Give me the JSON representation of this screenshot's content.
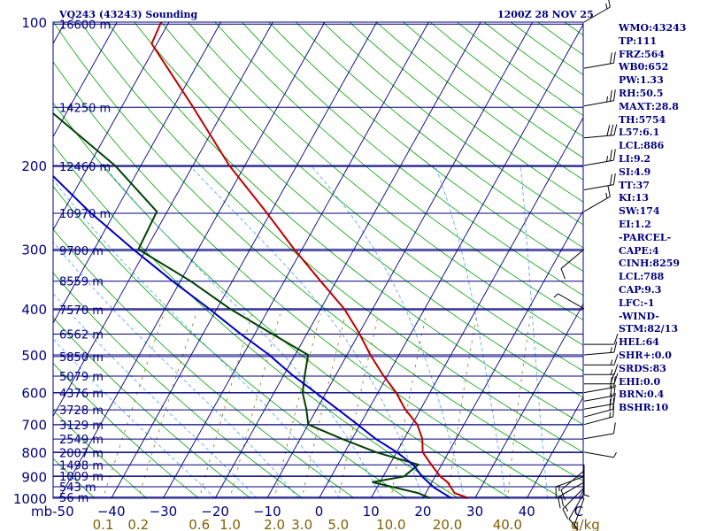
{
  "header": {
    "station": "VQ243 (43243) Sounding",
    "time": "1200Z 28 NOV 25"
  },
  "indices": [
    "WMO:43243",
    "TP:111",
    "FRZ:564",
    "WB0:652",
    "PW:1.33",
    "RH:50.5",
    "MAXT:28.8",
    "TH:5754",
    "L57:6.1",
    "LCL:886",
    "LI:9.2",
    "SI:4.9",
    "TT:37",
    "KI:13",
    "SW:174",
    "EI:1.2",
    "-PARCEL-",
    "CAPE:4",
    "CINH:8259",
    "LCL:788",
    "CAP:9.3",
    "LFC:-1",
    "-WIND-",
    "STM:82/13",
    "HEL:64",
    "SHR+:0.0",
    "SRDS:83",
    "EHI:0.0",
    "BRN:0.4",
    "BSHR:10"
  ],
  "colors": {
    "frame": "#00007f",
    "isotherm": "#00007f",
    "dry_adiabat": "#00a000",
    "moist_adiabat": "#5aaaff",
    "mixing_ratio": "#a08020",
    "temperature": "#c00000",
    "dewpoint": "#004000",
    "parcel": "#0000c0",
    "wind_barb": "#000000"
  },
  "chart_data": {
    "type": "line",
    "diagram": "skew-t log-p",
    "y_scale": "log",
    "ylim": [
      1000,
      100
    ],
    "xlim": [
      -50,
      50
    ],
    "isobars": [
      1000,
      900,
      800,
      700,
      600,
      500,
      400,
      300,
      200,
      100
    ],
    "pressure_tick_labels": [
      "1000",
      "900",
      "800",
      "700",
      "600",
      "500",
      "400",
      "300",
      "200",
      "100"
    ],
    "height_labels": [
      {
        "p": 995,
        "label": "56 m"
      },
      {
        "p": 946,
        "label": "543 m"
      },
      {
        "p": 898,
        "label": "1009 m"
      },
      {
        "p": 851,
        "label": "1498 m"
      },
      {
        "p": 802,
        "label": "2007 m"
      },
      {
        "p": 751,
        "label": "2549 m"
      },
      {
        "p": 701,
        "label": "3129 m"
      },
      {
        "p": 652,
        "label": "3728 m"
      },
      {
        "p": 601,
        "label": "4376 m"
      },
      {
        "p": 554,
        "label": "5079 m"
      },
      {
        "p": 504,
        "label": "5850 m"
      },
      {
        "p": 452,
        "label": "6562 m"
      },
      {
        "p": 402,
        "label": "7570 m"
      },
      {
        "p": 350,
        "label": "8559 m"
      },
      {
        "p": 302,
        "label": "9700 m"
      },
      {
        "p": 252,
        "label": "10970 m"
      },
      {
        "p": 201,
        "label": "12460 m"
      },
      {
        "p": 151,
        "label": "14250 m"
      },
      {
        "p": 101,
        "label": "16600 m"
      }
    ],
    "temperature_ticks": [
      -50,
      -40,
      -30,
      -20,
      -10,
      0,
      10,
      20,
      30,
      40,
      50
    ],
    "temperature_tick_labels": [
      "mb-50",
      "−40",
      "−30",
      "−20",
      "−10",
      "0",
      "10",
      "20",
      "30",
      "40",
      "C"
    ],
    "mixing_ratio_ticks": [
      0.1,
      0.2,
      0.6,
      1.0,
      2.0,
      3.0,
      5.0,
      10.0,
      20.0,
      40.0
    ],
    "mixing_ratio_tick_labels": [
      "0.1",
      "0.2",
      "0.6",
      "1.0",
      "2.0",
      "3.0",
      "5.0",
      "10.0",
      "20.0",
      "40.0",
      "g/kg"
    ],
    "series": [
      {
        "key": "temperature",
        "points": [
          {
            "p": 1000,
            "t": 28.8
          },
          {
            "p": 975,
            "t": 25.5
          },
          {
            "p": 925,
            "t": 23.0
          },
          {
            "p": 900,
            "t": 21.0
          },
          {
            "p": 850,
            "t": 18.0
          },
          {
            "p": 800,
            "t": 15.0
          },
          {
            "p": 750,
            "t": 13.5
          },
          {
            "p": 700,
            "t": 11.0
          },
          {
            "p": 650,
            "t": 7.0
          },
          {
            "p": 600,
            "t": 3.5
          },
          {
            "p": 550,
            "t": -1.0
          },
          {
            "p": 500,
            "t": -5.5
          },
          {
            "p": 450,
            "t": -10.0
          },
          {
            "p": 400,
            "t": -15.5
          },
          {
            "p": 350,
            "t": -23.0
          },
          {
            "p": 300,
            "t": -31.5
          },
          {
            "p": 250,
            "t": -41.0
          },
          {
            "p": 200,
            "t": -53.0
          },
          {
            "p": 150,
            "t": -66.5
          },
          {
            "p": 111,
            "t": -81.0
          },
          {
            "p": 100,
            "t": -81.5
          }
        ]
      },
      {
        "key": "dewpoint",
        "points": [
          {
            "p": 1000,
            "t": 21.5
          },
          {
            "p": 975,
            "t": 18.5
          },
          {
            "p": 925,
            "t": 8.5
          },
          {
            "p": 900,
            "t": 14.0
          },
          {
            "p": 850,
            "t": 15.5
          },
          {
            "p": 800,
            "t": 6.0
          },
          {
            "p": 750,
            "t": -2.0
          },
          {
            "p": 700,
            "t": -10.0
          },
          {
            "p": 650,
            "t": -12.0
          },
          {
            "p": 600,
            "t": -14.5
          },
          {
            "p": 550,
            "t": -16.0
          },
          {
            "p": 500,
            "t": -17.5
          },
          {
            "p": 450,
            "t": -27.0
          },
          {
            "p": 400,
            "t": -37.5
          },
          {
            "p": 350,
            "t": -48.0
          },
          {
            "p": 300,
            "t": -61.5
          },
          {
            "p": 250,
            "t": -62.0
          },
          {
            "p": 200,
            "t": -75.0
          },
          {
            "p": 150,
            "t": -95.0
          },
          {
            "p": 111,
            "t": -110.0
          },
          {
            "p": 100,
            "t": -104.0
          }
        ]
      },
      {
        "key": "parcel",
        "points": [
          {
            "p": 1000,
            "t": 25.5
          },
          {
            "p": 950,
            "t": 21.0
          },
          {
            "p": 900,
            "t": 17.5
          },
          {
            "p": 850,
            "t": 14.5
          },
          {
            "p": 800,
            "t": 10.0
          },
          {
            "p": 750,
            "t": 4.5
          },
          {
            "p": 700,
            "t": -0.5
          },
          {
            "p": 650,
            "t": -6.0
          },
          {
            "p": 600,
            "t": -12.0
          },
          {
            "p": 550,
            "t": -18.5
          },
          {
            "p": 500,
            "t": -25.0
          },
          {
            "p": 450,
            "t": -33.0
          },
          {
            "p": 400,
            "t": -41.5
          },
          {
            "p": 350,
            "t": -51.5
          },
          {
            "p": 300,
            "t": -62.5
          },
          {
            "p": 250,
            "t": -75.0
          },
          {
            "p": 200,
            "t": -89.0
          },
          {
            "p": 150,
            "t": -105.0
          },
          {
            "p": 100,
            "t": -127.0
          }
        ]
      }
    ],
    "wind_barbs": [
      {
        "p": 1000,
        "dir": 200,
        "spd": 5
      },
      {
        "p": 975,
        "dir": 210,
        "spd": 10
      },
      {
        "p": 950,
        "dir": 225,
        "spd": 15
      },
      {
        "p": 925,
        "dir": 240,
        "spd": 20
      },
      {
        "p": 900,
        "dir": 250,
        "spd": 15
      },
      {
        "p": 875,
        "dir": 230,
        "spd": 10
      },
      {
        "p": 850,
        "dir": 180,
        "spd": 5
      },
      {
        "p": 800,
        "dir": 100,
        "spd": 5
      },
      {
        "p": 750,
        "dir": 80,
        "spd": 10
      },
      {
        "p": 700,
        "dir": 75,
        "spd": 15
      },
      {
        "p": 675,
        "dir": 75,
        "spd": 20
      },
      {
        "p": 650,
        "dir": 80,
        "spd": 20
      },
      {
        "p": 625,
        "dir": 80,
        "spd": 20
      },
      {
        "p": 600,
        "dir": 80,
        "spd": 20
      },
      {
        "p": 575,
        "dir": 90,
        "spd": 20
      },
      {
        "p": 550,
        "dir": 90,
        "spd": 15
      },
      {
        "p": 525,
        "dir": 90,
        "spd": 15
      },
      {
        "p": 500,
        "dir": 85,
        "spd": 15
      },
      {
        "p": 475,
        "dir": 90,
        "spd": 10
      },
      {
        "p": 400,
        "dir": 300,
        "spd": 5
      },
      {
        "p": 300,
        "dir": 230,
        "spd": 10
      },
      {
        "p": 250,
        "dir": 60,
        "spd": 15
      },
      {
        "p": 225,
        "dir": 80,
        "spd": 20
      },
      {
        "p": 200,
        "dir": 80,
        "spd": 25
      },
      {
        "p": 175,
        "dir": 85,
        "spd": 30
      },
      {
        "p": 150,
        "dir": 80,
        "spd": 25
      },
      {
        "p": 125,
        "dir": 80,
        "spd": 20
      },
      {
        "p": 100,
        "dir": 60,
        "spd": 15
      }
    ]
  }
}
